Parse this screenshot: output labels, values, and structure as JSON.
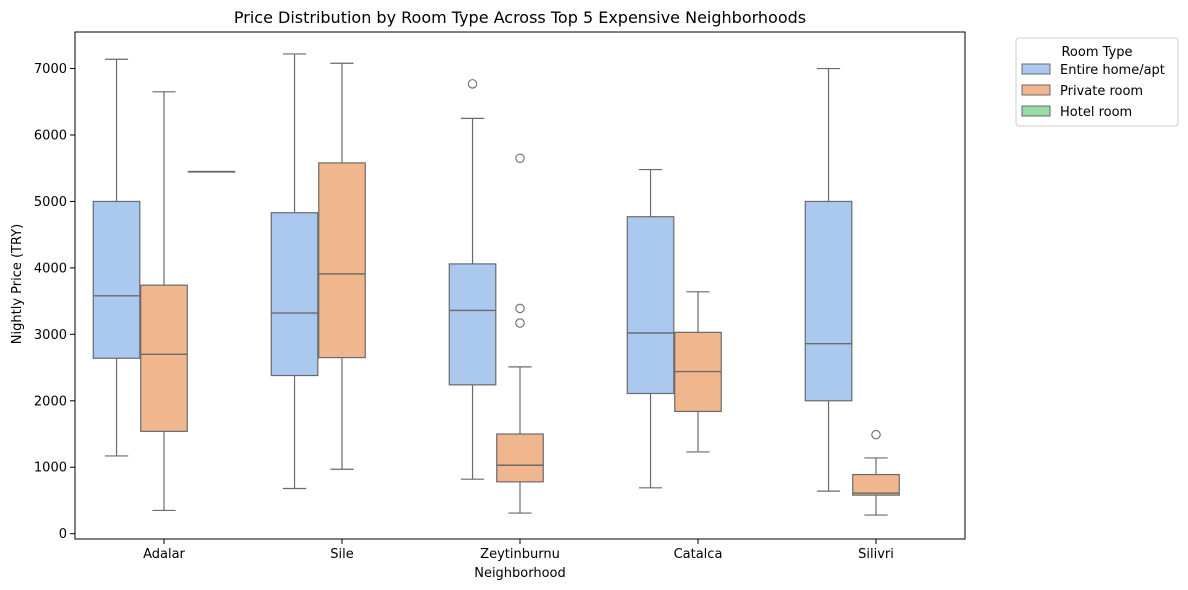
{
  "chart_data": {
    "type": "box",
    "title": "Price Distribution by Room Type Across Top 5 Expensive Neighborhoods",
    "xlabel": "Neighborhood",
    "ylabel": "Nightly Price (TRY)",
    "ylim": [
      -80,
      7550
    ],
    "yticks": [
      0,
      1000,
      2000,
      3000,
      4000,
      5000,
      6000,
      7000
    ],
    "categories": [
      "Adalar",
      "Sile",
      "Zeytinburnu",
      "Catalca",
      "Silivri"
    ],
    "legend": {
      "title": "Room Type",
      "position": "outside-top-right"
    },
    "series": [
      {
        "name": "Entire home/apt",
        "color": "#abc9ee",
        "boxes": [
          {
            "category": "Adalar",
            "whislo": 1170,
            "q1": 2640,
            "med": 3580,
            "q3": 5000,
            "whishi": 7140,
            "fliers": []
          },
          {
            "category": "Sile",
            "whislo": 680,
            "q1": 2380,
            "med": 3320,
            "q3": 4830,
            "whishi": 7220,
            "fliers": []
          },
          {
            "category": "Zeytinburnu",
            "whislo": 820,
            "q1": 2240,
            "med": 3360,
            "q3": 4060,
            "whishi": 6250,
            "fliers": [
              6770
            ]
          },
          {
            "category": "Catalca",
            "whislo": 690,
            "q1": 2110,
            "med": 3020,
            "q3": 4770,
            "whishi": 5480,
            "fliers": []
          },
          {
            "category": "Silivri",
            "whislo": 640,
            "q1": 2000,
            "med": 2860,
            "q3": 5000,
            "whishi": 7000,
            "fliers": []
          }
        ]
      },
      {
        "name": "Private room",
        "color": "#f0b78f",
        "boxes": [
          {
            "category": "Adalar",
            "whislo": 350,
            "q1": 1540,
            "med": 2700,
            "q3": 3740,
            "whishi": 6650,
            "fliers": []
          },
          {
            "category": "Sile",
            "whislo": 970,
            "q1": 2650,
            "med": 3910,
            "q3": 5580,
            "whishi": 7080,
            "fliers": []
          },
          {
            "category": "Zeytinburnu",
            "whislo": 310,
            "q1": 780,
            "med": 1030,
            "q3": 1500,
            "whishi": 2510,
            "fliers": [
              3170,
              3390,
              5650
            ]
          },
          {
            "category": "Catalca",
            "whislo": 1230,
            "q1": 1840,
            "med": 2440,
            "q3": 3030,
            "whishi": 3640,
            "fliers": []
          },
          {
            "category": "Silivri",
            "whislo": 280,
            "q1": 580,
            "med": 610,
            "q3": 890,
            "whishi": 1140,
            "fliers": [
              1490
            ]
          }
        ]
      },
      {
        "name": "Hotel room",
        "color": "#97dca7",
        "boxes": [
          {
            "category": "Adalar",
            "whislo": 5450,
            "q1": 5450,
            "med": 5450,
            "q3": 5450,
            "whishi": 5450,
            "fliers": []
          }
        ]
      }
    ]
  }
}
